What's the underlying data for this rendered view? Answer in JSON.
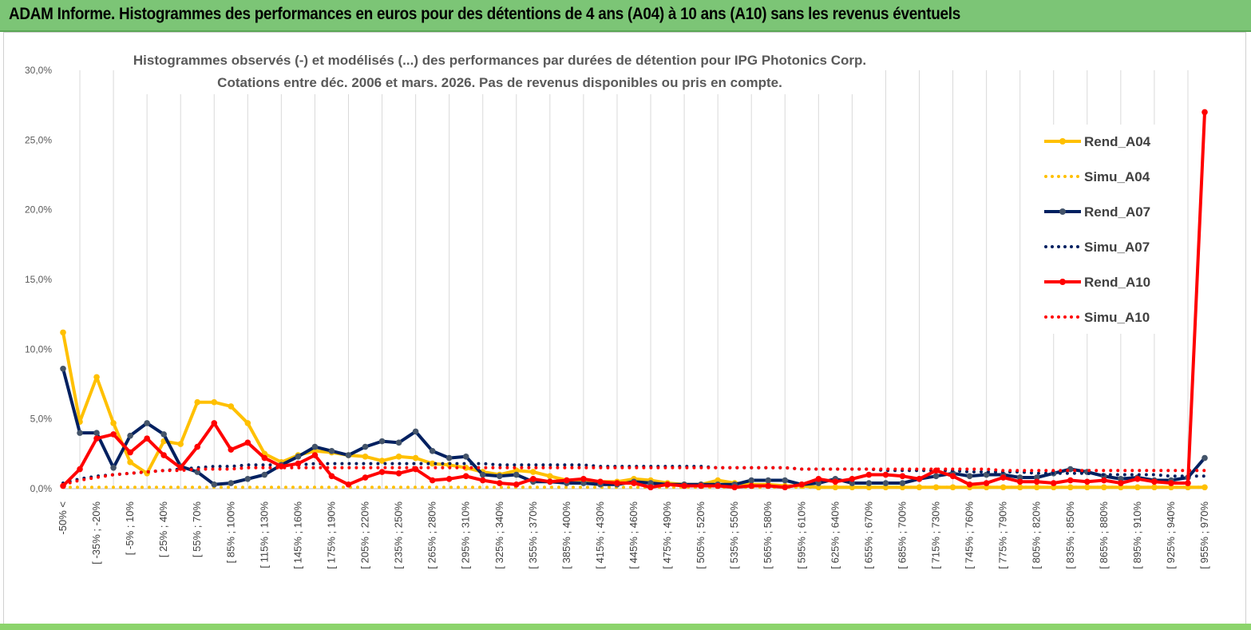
{
  "banner": {
    "title": "ADAM Informe. Histogrammes des performances en euros pour des détentions de 4 ans (A04) à 10 ans (A10) sans les revenus éventuels"
  },
  "colors": {
    "banner_bg": "#7cc576",
    "A04": "#ffc000",
    "A07": "#002060",
    "A10": "#ff0000",
    "grid": "#d9d9d9"
  },
  "chart_data": {
    "type": "line",
    "title": "Histogrammes observés (-) et modélisés (...) des performances par durées de détention pour IPG Photonics Corp.",
    "subtitle": "Cotations entre déc. 2006 et mars. 2026. Pas de revenus disponibles ou pris en compte.",
    "y_ticks": [
      "0,0%",
      "5,0%",
      "10,0%",
      "15,0%",
      "20,0%",
      "25,0%",
      "30,0%"
    ],
    "ylim": [
      0,
      30
    ],
    "grid": "vertical",
    "legend_position": "right",
    "x_tick_labels": [
      "-50% <",
      "[ -35% ; -20%",
      "[ -5% ; 10%",
      "[ 25% ; 40%",
      "[ 55% ; 70%",
      "[ 85% ; 100%",
      "[ 115% ; 130%",
      "[ 145% ; 160%",
      "[ 175% ; 190%",
      "[ 205% ; 220%",
      "[ 235% ; 250%",
      "[ 265% ; 280%",
      "[ 295% ; 310%",
      "[ 325% ; 340%",
      "[ 355% ; 370%",
      "[ 385% ; 400%",
      "[ 415% ; 430%",
      "[ 445% ; 460%",
      "[ 475% ; 490%",
      "[ 505% ; 520%",
      "[ 535% ; 550%",
      "[ 565% ; 580%",
      "[ 595% ; 610%",
      "[ 625% ; 640%",
      "[ 655% ; 670%",
      "[ 685% ; 700%",
      "[ 715% ; 730%",
      "[ 745% ; 760%",
      "[ 775% ; 790%",
      "[ 805% ; 820%",
      "[ 835% ; 850%",
      "[ 865% ; 880%",
      "[ 895% ; 910%",
      "[ 925% ; 940%",
      "[ 955% ; 970%"
    ],
    "n_categories": 69,
    "series": [
      {
        "name": "Rend_A04",
        "style": "solid",
        "color": "#ffc000",
        "values": [
          11.2,
          4.8,
          8.0,
          4.7,
          1.9,
          1.1,
          3.4,
          3.2,
          6.2,
          6.2,
          5.9,
          4.7,
          2.5,
          1.9,
          2.4,
          2.7,
          2.6,
          2.4,
          2.3,
          2.0,
          2.3,
          2.2,
          1.8,
          1.7,
          1.5,
          1.2,
          1.0,
          1.3,
          1.2,
          0.9,
          0.6,
          0.6,
          0.5,
          0.5,
          0.7,
          0.6,
          0.4,
          0.3,
          0.3,
          0.6,
          0.4,
          0.3,
          0.3,
          0.2,
          0.2,
          0.1,
          0.1,
          0.1,
          0.1,
          0.1,
          0.1,
          0.1,
          0.1,
          0.1,
          0.1,
          0.1,
          0.1,
          0.1,
          0.1,
          0.1,
          0.1,
          0.1,
          0.1,
          0.1,
          0.1,
          0.1,
          0.1,
          0.1,
          0.1
        ]
      },
      {
        "name": "Simu_A04",
        "style": "dotted",
        "color": "#ffc000",
        "values": [
          0.1,
          0.1,
          0.1,
          0.1,
          0.1,
          0.1,
          0.1,
          0.1,
          0.1,
          0.1,
          0.1,
          0.1,
          0.1,
          0.1,
          0.1,
          0.1,
          0.1,
          0.1,
          0.1,
          0.1,
          0.1,
          0.1,
          0.1,
          0.1,
          0.1,
          0.1,
          0.1,
          0.1,
          0.1,
          0.1,
          0.1,
          0.1,
          0.1,
          0.1,
          0.1,
          0.1,
          0.1,
          0.1,
          0.1,
          0.1,
          0.1,
          0.1,
          0.1,
          0.1,
          0.1,
          0.1,
          0.1,
          0.1,
          0.1,
          0.1,
          0.1,
          0.1,
          0.1,
          0.1,
          0.1,
          0.1,
          0.1,
          0.1,
          0.1,
          0.1,
          0.1,
          0.1,
          0.1,
          0.1,
          0.1,
          0.1,
          0.1,
          0.1,
          0.1
        ]
      },
      {
        "name": "Rend_A07",
        "style": "solid",
        "color": "#002060",
        "values": [
          8.6,
          4.0,
          4.0,
          1.5,
          3.8,
          4.7,
          3.9,
          1.6,
          1.2,
          0.3,
          0.4,
          0.7,
          1.0,
          1.7,
          2.3,
          3.0,
          2.7,
          2.4,
          3.0,
          3.4,
          3.3,
          4.1,
          2.7,
          2.2,
          2.3,
          1.0,
          0.9,
          1.0,
          0.5,
          0.5,
          0.4,
          0.4,
          0.3,
          0.3,
          0.5,
          0.4,
          0.3,
          0.3,
          0.3,
          0.3,
          0.3,
          0.6,
          0.6,
          0.6,
          0.3,
          0.4,
          0.7,
          0.4,
          0.4,
          0.4,
          0.4,
          0.7,
          0.9,
          1.1,
          0.9,
          1.0,
          1.0,
          0.8,
          0.8,
          1.1,
          1.4,
          1.2,
          0.9,
          0.7,
          0.8,
          0.6,
          0.6,
          0.8,
          2.2
        ]
      },
      {
        "name": "Simu_A07",
        "style": "dotted",
        "color": "#002060",
        "values": [
          0.4,
          0.7,
          0.9,
          1.0,
          1.1,
          1.2,
          1.3,
          1.4,
          1.5,
          1.6,
          1.6,
          1.7,
          1.7,
          1.7,
          1.7,
          1.8,
          1.8,
          1.8,
          1.8,
          1.8,
          1.8,
          1.8,
          1.8,
          1.8,
          1.8,
          1.8,
          1.7,
          1.7,
          1.7,
          1.7,
          1.7,
          1.7,
          1.6,
          1.6,
          1.6,
          1.6,
          1.6,
          1.6,
          1.6,
          1.5,
          1.5,
          1.5,
          1.5,
          1.5,
          1.4,
          1.4,
          1.4,
          1.4,
          1.4,
          1.3,
          1.3,
          1.3,
          1.3,
          1.3,
          1.2,
          1.2,
          1.2,
          1.2,
          1.1,
          1.1,
          1.1,
          1.1,
          1.0,
          1.0,
          1.0,
          1.0,
          0.9,
          0.9,
          0.9
        ]
      },
      {
        "name": "Rend_A10",
        "style": "solid",
        "color": "#ff0000",
        "values": [
          0.2,
          1.4,
          3.6,
          3.9,
          2.6,
          3.6,
          2.4,
          1.5,
          3.0,
          4.7,
          2.8,
          3.3,
          2.2,
          1.6,
          1.8,
          2.4,
          0.9,
          0.3,
          0.8,
          1.2,
          1.1,
          1.4,
          0.6,
          0.7,
          0.9,
          0.6,
          0.4,
          0.3,
          0.7,
          0.5,
          0.6,
          0.7,
          0.5,
          0.4,
          0.4,
          0.1,
          0.3,
          0.2,
          0.2,
          0.2,
          0.1,
          0.2,
          0.2,
          0.1,
          0.3,
          0.7,
          0.5,
          0.7,
          1.0,
          1.0,
          0.9,
          0.7,
          1.3,
          0.9,
          0.3,
          0.4,
          0.8,
          0.5,
          0.5,
          0.4,
          0.6,
          0.5,
          0.6,
          0.4,
          0.7,
          0.5,
          0.4,
          0.4,
          27.0
        ]
      },
      {
        "name": "Simu_A10",
        "style": "dotted",
        "color": "#ff0000",
        "values": [
          0.3,
          0.6,
          0.8,
          1.0,
          1.1,
          1.2,
          1.3,
          1.3,
          1.4,
          1.4,
          1.4,
          1.5,
          1.5,
          1.5,
          1.5,
          1.5,
          1.5,
          1.5,
          1.5,
          1.5,
          1.5,
          1.5,
          1.5,
          1.5,
          1.5,
          1.5,
          1.5,
          1.5,
          1.5,
          1.5,
          1.5,
          1.5,
          1.5,
          1.5,
          1.5,
          1.5,
          1.5,
          1.5,
          1.5,
          1.5,
          1.5,
          1.5,
          1.5,
          1.5,
          1.4,
          1.4,
          1.4,
          1.4,
          1.4,
          1.4,
          1.4,
          1.4,
          1.4,
          1.4,
          1.4,
          1.4,
          1.3,
          1.3,
          1.3,
          1.3,
          1.3,
          1.3,
          1.3,
          1.3,
          1.3,
          1.3,
          1.3,
          1.3,
          1.3
        ]
      }
    ]
  }
}
